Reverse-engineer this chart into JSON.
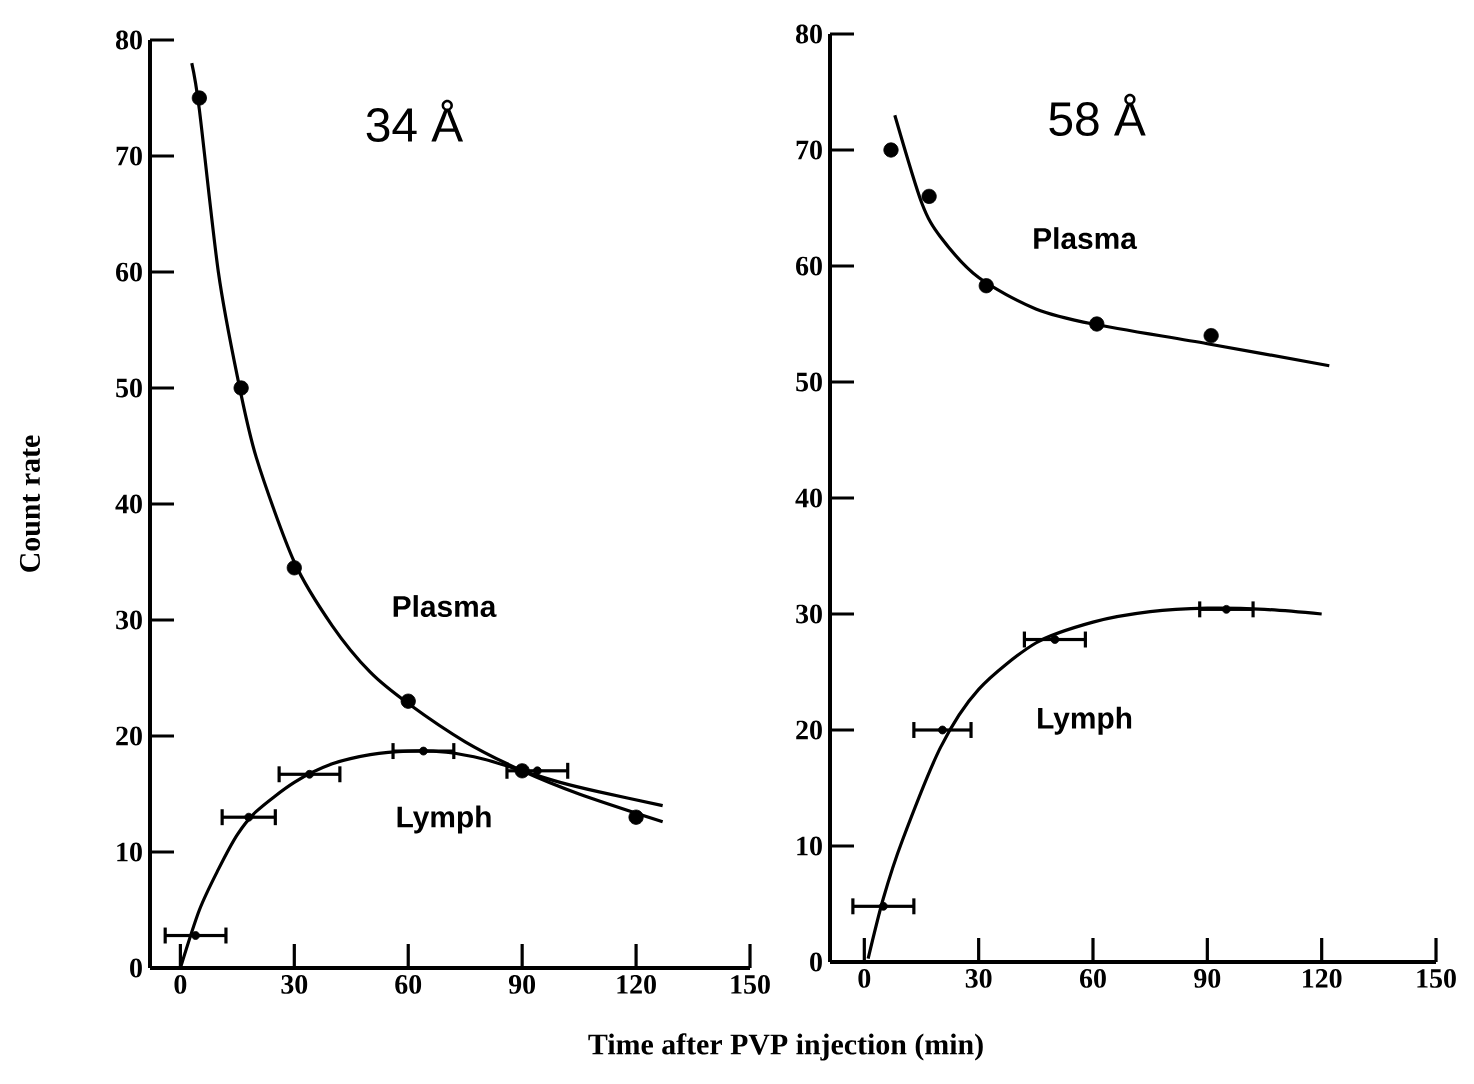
{
  "chart_data": [
    {
      "type": "scatter",
      "title": "34 Å",
      "xlabel": "Time after PVP injection (min)",
      "ylabel": "Count rate",
      "xlim": [
        -8,
        150
      ],
      "ylim": [
        0,
        80
      ],
      "xticks": [
        0,
        30,
        60,
        90,
        120,
        150
      ],
      "yticks": [
        0,
        10,
        20,
        30,
        40,
        50,
        60,
        70,
        80
      ],
      "series": [
        {
          "type": "scatter",
          "marker": "circle",
          "color": "#000000",
          "x": [
            5,
            16,
            30,
            60,
            90,
            120
          ],
          "values": [
            75,
            50,
            34.5,
            23,
            17,
            13
          ]
        },
        {
          "type": "line",
          "marker": "none",
          "color": "#000000",
          "x": [
            3,
            5,
            10,
            15,
            20,
            30,
            40,
            50,
            60,
            75,
            90,
            105,
            127
          ],
          "values": [
            78,
            74,
            60,
            51,
            44,
            35,
            29.5,
            25.5,
            22.8,
            19.5,
            17,
            15,
            12.6
          ]
        },
        {
          "type": "scatter",
          "marker": "circle",
          "color": "#000000",
          "x": [
            4,
            18,
            34,
            64,
            94
          ],
          "values": [
            2.8,
            13,
            16.7,
            18.7,
            17
          ],
          "xerrors": [
            8,
            7,
            8,
            8,
            8
          ]
        },
        {
          "type": "line",
          "marker": "none",
          "color": "#000000",
          "x": [
            0,
            5,
            10,
            15,
            20,
            30,
            40,
            50,
            60,
            70,
            80,
            90,
            100,
            110,
            127
          ],
          "values": [
            0,
            5,
            8.5,
            11.5,
            13.5,
            16,
            17.6,
            18.4,
            18.7,
            18.6,
            18,
            17,
            16,
            15.2,
            14
          ]
        }
      ],
      "annotations": [
        "Plasma",
        "Lymph"
      ]
    },
    {
      "type": "scatter",
      "title": "58 Å",
      "xlim": [
        -9,
        150
      ],
      "ylim": [
        0,
        80
      ],
      "xticks": [
        0,
        30,
        60,
        90,
        120,
        150
      ],
      "yticks": [
        0,
        10,
        20,
        30,
        40,
        50,
        60,
        70,
        80
      ],
      "series": [
        {
          "type": "scatter",
          "marker": "circle",
          "color": "#000000",
          "x": [
            7,
            17,
            32,
            61,
            91
          ],
          "values": [
            70,
            66,
            58.3,
            55,
            54
          ]
        },
        {
          "type": "line",
          "marker": "none",
          "color": "#000000",
          "x": [
            8,
            15,
            20,
            30,
            45,
            60,
            90,
            122
          ],
          "values": [
            73,
            65.5,
            62.5,
            59,
            56.3,
            55,
            53.3,
            51.4
          ]
        },
        {
          "type": "scatter",
          "marker": "circle",
          "color": "#000000",
          "x": [
            5,
            20.5,
            50,
            95
          ],
          "values": [
            4.8,
            20,
            27.8,
            30.4
          ],
          "xerrors": [
            8,
            7.5,
            8,
            7
          ]
        },
        {
          "type": "line",
          "marker": "none",
          "color": "#000000",
          "x": [
            1,
            5,
            10,
            20,
            30,
            45,
            60,
            75,
            90,
            105,
            120
          ],
          "values": [
            0.3,
            5.5,
            10.5,
            18.5,
            23.5,
            27.5,
            29.3,
            30.2,
            30.5,
            30.4,
            30
          ]
        }
      ],
      "annotations": [
        "Plasma",
        "Lymph"
      ]
    }
  ]
}
